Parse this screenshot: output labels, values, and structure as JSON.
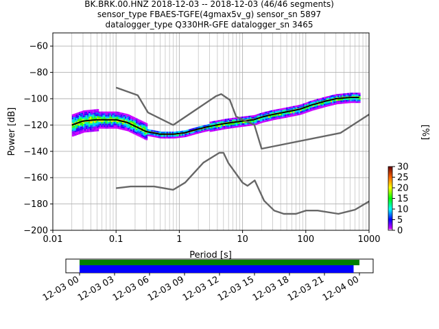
{
  "title_lines": [
    "BK.BRK.00.HNZ   2018-12-03 -- 2018-12-03  (46/46 segments)",
    "sensor_type FBAES-TGFE(4gmax5v_g) sensor_sn 5897",
    "datalogger_type Q330HR-GFE datalogger_sn 3465"
  ],
  "chart_data": [
    {
      "type": "line",
      "title": "BK.BRK.00.HNZ   2018-12-03 -- 2018-12-03  (46/46 segments)",
      "xlabel": "Period [s]",
      "ylabel": "Power [dB]",
      "xscale": "log",
      "xlim": [
        0.01,
        1000
      ],
      "ylim": [
        -200,
        -50
      ],
      "x_tick_labels": [
        "0.01",
        "0.1",
        "1",
        "10",
        "100",
        "1000"
      ],
      "y_ticks": [
        -200,
        -180,
        -160,
        -140,
        -120,
        -100,
        -80,
        -60
      ],
      "grid": true,
      "series": [
        {
          "role": "mode",
          "color": "#000000",
          "x": [
            0.02,
            0.03,
            0.05,
            0.1,
            0.15,
            0.3,
            0.5,
            0.8,
            1.2,
            2,
            3,
            5,
            7,
            10,
            15,
            20,
            30,
            50,
            80,
            120,
            200,
            300,
            500,
            700
          ],
          "y": [
            -120,
            -117,
            -116,
            -116,
            -118,
            -125,
            -127,
            -127,
            -126,
            -123,
            -121,
            -119,
            -118,
            -117,
            -116,
            -114,
            -112,
            -110,
            -108,
            -105,
            -102,
            -100,
            -99,
            -99
          ]
        },
        {
          "role": "high-noise-model",
          "color": "#666666",
          "x": [
            0.1,
            0.22,
            0.32,
            0.8,
            3.8,
            4.6,
            6.3,
            7.9,
            15.4,
            20,
            354.8,
            1000
          ],
          "y": [
            -91.5,
            -97.4,
            -110.5,
            -120,
            -98,
            -96.5,
            -101,
            -113.5,
            -120,
            -138,
            -126,
            -112
          ]
        },
        {
          "role": "low-noise-model",
          "color": "#666666",
          "x": [
            0.1,
            0.17,
            0.4,
            0.8,
            1.24,
            2.4,
            4.3,
            5,
            6,
            10,
            12,
            15.6,
            21.9,
            31.6,
            45,
            70,
            101,
            154,
            328,
            600,
            1000
          ],
          "y": [
            -168,
            -166.7,
            -166.7,
            -169.2,
            -163.7,
            -148.6,
            -141.1,
            -141.1,
            -149,
            -163.8,
            -166.2,
            -162.1,
            -177.5,
            -185,
            -187.5,
            -187.5,
            -185,
            -185,
            -187.5,
            -184.4,
            -178
          ]
        }
      ],
      "colorbar": {
        "label": "[%]",
        "ticks": [
          0,
          5,
          10,
          15,
          20,
          25,
          30
        ],
        "range": [
          0,
          30
        ]
      }
    },
    {
      "type": "bar",
      "role": "data-coverage",
      "x_tick_labels": [
        "12-03 00",
        "12-03 03",
        "12-03 06",
        "12-03 09",
        "12-03 12",
        "12-03 15",
        "12-03 18",
        "12-03 21",
        "12-04 00"
      ],
      "series": [
        {
          "role": "available-data",
          "color": "#008000",
          "start": "12-03 00",
          "end": "12-04 00"
        },
        {
          "role": "psd-segments",
          "color": "#0000ff",
          "start": "12-03 00",
          "end": "12-03 23:30"
        }
      ]
    }
  ]
}
